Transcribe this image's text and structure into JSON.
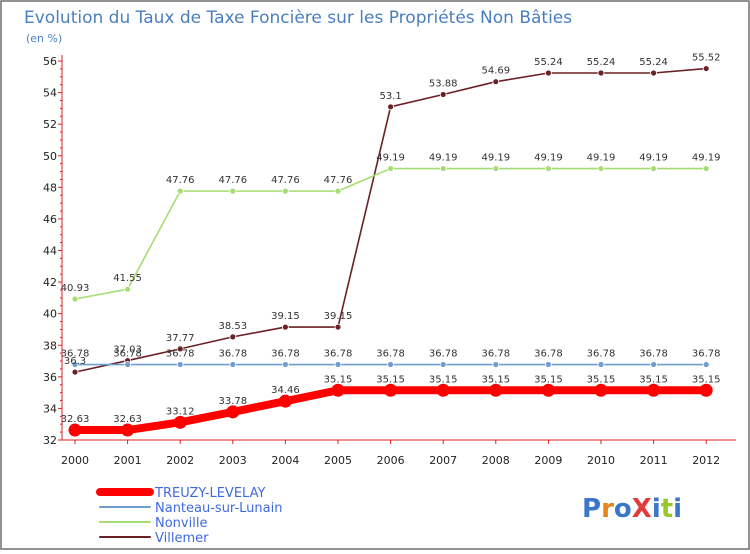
{
  "chart_data": {
    "type": "line",
    "title": "Evolution du Taux de Taxe Foncière sur les Propriétés Non Bâties",
    "ylabel": "(en %)",
    "xlabel": "",
    "ylim": [
      32,
      56
    ],
    "yticks": [
      32,
      34,
      36,
      38,
      40,
      42,
      44,
      46,
      48,
      50,
      52,
      54,
      56
    ],
    "categories": [
      "2000",
      "2001",
      "2002",
      "2003",
      "2004",
      "2005",
      "2006",
      "2007",
      "2008",
      "2009",
      "2010",
      "2011",
      "2012"
    ],
    "series": [
      {
        "name": "TREUZY-LEVELAY",
        "color": "#ff0000",
        "values": [
          32.63,
          32.63,
          33.12,
          33.78,
          34.46,
          35.15,
          35.15,
          35.15,
          35.15,
          35.15,
          35.15,
          35.15,
          35.15
        ],
        "labels": [
          "32.63",
          "32.63",
          "33.12",
          "33.78",
          "34.46",
          "35.15",
          "35.15",
          "35.15",
          "35.15",
          "35.15",
          "35.15",
          "35.15",
          "35.15"
        ]
      },
      {
        "name": "Nanteau-sur-Lunain",
        "color": "#6e9ecf",
        "values": [
          36.78,
          36.78,
          36.78,
          36.78,
          36.78,
          36.78,
          36.78,
          36.78,
          36.78,
          36.78,
          36.78,
          36.78,
          36.78
        ],
        "labels": [
          "36.78",
          "36.78",
          "36.78",
          "36.78",
          "36.78",
          "36.78",
          "36.78",
          "36.78",
          "36.78",
          "36.78",
          "36.78",
          "36.78",
          "36.78"
        ]
      },
      {
        "name": "Nonville",
        "color": "#a6dd72",
        "values": [
          40.93,
          41.55,
          47.76,
          47.76,
          47.76,
          47.76,
          49.19,
          49.19,
          49.19,
          49.19,
          49.19,
          49.19,
          49.19
        ],
        "labels": [
          "40.93",
          "41.55",
          "47.76",
          "47.76",
          "47.76",
          "47.76",
          "49.19",
          "49.19",
          "49.19",
          "49.19",
          "49.19",
          "49.19",
          "49.19"
        ]
      },
      {
        "name": "Villemer",
        "color": "#6b2025",
        "values": [
          36.3,
          37.03,
          37.77,
          38.53,
          39.15,
          39.15,
          53.1,
          53.88,
          54.69,
          55.24,
          55.24,
          55.24,
          55.52
        ],
        "labels": [
          "36.3",
          "37.03",
          "37.77",
          "38.53",
          "39.15",
          "39.15",
          "53.1",
          "53.88",
          "54.69",
          "55.24",
          "55.24",
          "55.24",
          "55.52"
        ]
      }
    ],
    "grid": false,
    "legend": "bottom-left"
  },
  "brand": {
    "logo_text": "ProXiti",
    "letter_colors": [
      "#3a76c9",
      "#e8831c",
      "#3a76c9",
      "#e23b3b",
      "#3a76c9",
      "#9ac72b",
      "#3a76c9"
    ]
  },
  "colors": {
    "axis": "#dd2222",
    "frame": "#6f6f6f"
  }
}
